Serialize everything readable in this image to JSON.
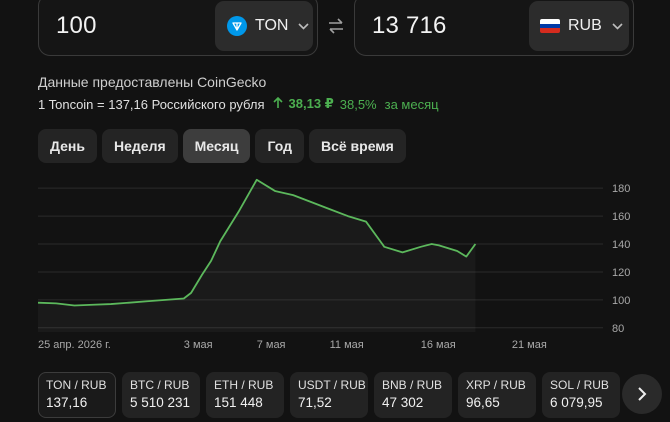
{
  "converter": {
    "from": {
      "amount": "100",
      "currency": "TON"
    },
    "to": {
      "amount": "13 716",
      "currency": "RUB"
    }
  },
  "source": "Данные предоставлены CoinGecko",
  "rate": {
    "text": "1 Toncoin = 137,16 Российского рубля",
    "change_abs": "38,13 ₽",
    "change_pct": "38,5%",
    "period_label": "за месяц"
  },
  "periods": [
    {
      "label": "День",
      "active": false
    },
    {
      "label": "Неделя",
      "active": false
    },
    {
      "label": "Месяц",
      "active": true
    },
    {
      "label": "Год",
      "active": false
    },
    {
      "label": "Всё время",
      "active": false
    }
  ],
  "chart_data": {
    "type": "line",
    "series": [
      {
        "color": "#5cb85c",
        "x": [
          0,
          1,
          2,
          3,
          4,
          5,
          6,
          7,
          8,
          8.4,
          9,
          9.5,
          10,
          11,
          12,
          13,
          14,
          15,
          16,
          17,
          18,
          19,
          20,
          21,
          21.6,
          22,
          23,
          23.5,
          24
        ],
        "values": [
          98,
          97.5,
          96,
          96.5,
          97,
          98,
          99,
          100,
          101,
          105,
          118,
          128,
          142,
          163,
          186,
          178,
          175,
          170,
          165,
          160,
          156,
          138,
          134,
          138,
          140,
          139,
          135,
          131,
          140
        ]
      }
    ],
    "xticks": [
      {
        "x": 0,
        "label": "25 апр. 2026 г."
      },
      {
        "x": 8,
        "label": "3 мая"
      },
      {
        "x": 12,
        "label": "7 мая"
      },
      {
        "x": 16,
        "label": "11 мая"
      },
      {
        "x": 21,
        "label": "16 мая"
      },
      {
        "x": 26,
        "label": "21 мая"
      }
    ],
    "yticks": [
      80,
      100,
      120,
      140,
      160,
      180
    ],
    "xlim": [
      0,
      31
    ],
    "ylim": [
      77,
      193
    ],
    "grid": true,
    "y_axis_side": "right"
  },
  "pairs": [
    {
      "name": "TON / RUB",
      "value": "137,16",
      "active": true
    },
    {
      "name": "BTC / RUB",
      "value": "5 510 231",
      "active": false
    },
    {
      "name": "ETH / RUB",
      "value": "151 448",
      "active": false
    },
    {
      "name": "USDT / RUB",
      "value": "71,52",
      "active": false
    },
    {
      "name": "BNB / RUB",
      "value": "47 302",
      "active": false
    },
    {
      "name": "XRP / RUB",
      "value": "96,65",
      "active": false
    },
    {
      "name": "SOL / RUB",
      "value": "6 079,95",
      "active": false
    }
  ],
  "icons": {
    "ton": "ton-coin-icon",
    "rub": "russia-flag-icon",
    "swap": "swap-arrows-icon",
    "next": "chevron-right-icon",
    "up": "arrow-up-icon"
  }
}
